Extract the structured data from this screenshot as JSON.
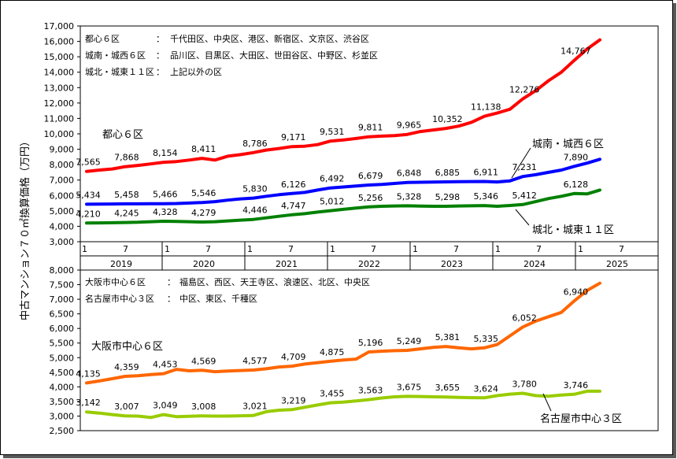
{
  "y_axis_title": "中古マンション７０㎡換算価格（万円）",
  "chart_data": [
    {
      "type": "line",
      "id": "tokyo",
      "ylim": [
        3000,
        17000
      ],
      "yticks": [
        "3,000",
        "4,000",
        "5,000",
        "6,000",
        "7,000",
        "8,000",
        "9,000",
        "10,000",
        "11,000",
        "12,000",
        "13,000",
        "14,000",
        "15,000",
        "16,000",
        "17,000"
      ],
      "notes": [
        {
          "name": "都心６区",
          "sep": "：",
          "areas": "千代田区、中央区、港区、新宿区、文京区、渋谷区"
        },
        {
          "name": "城南・城西６区",
          "sep": "：",
          "areas": "品川区、目黒区、大田区、世田谷区、中野区、杉並区"
        },
        {
          "name": "城北・城東１１区",
          "sep": "：",
          "areas": "上記以外の区"
        }
      ],
      "series": [
        {
          "name": "都心６区",
          "color": "#ff0000",
          "values": [
            7565,
            7650,
            7720,
            7868,
            7950,
            8050,
            8154,
            8200,
            8300,
            8411,
            8300,
            8550,
            8650,
            8786,
            8950,
            9050,
            9171,
            9200,
            9300,
            9531,
            9600,
            9700,
            9811,
            9850,
            9880,
            9965,
            10150,
            10250,
            10352,
            10500,
            10750,
            11138,
            11350,
            11600,
            12276,
            12800,
            13450,
            14000,
            14767,
            15500,
            16100
          ],
          "labels": [
            {
              "i": 0,
              "v": "7,565"
            },
            {
              "i": 3,
              "v": "7,868"
            },
            {
              "i": 6,
              "v": "8,154"
            },
            {
              "i": 9,
              "v": "8,411"
            },
            {
              "i": 13,
              "v": "8,786"
            },
            {
              "i": 16,
              "v": "9,171"
            },
            {
              "i": 19,
              "v": "9,531"
            },
            {
              "i": 22,
              "v": "9,811"
            },
            {
              "i": 25,
              "v": "9,965"
            },
            {
              "i": 28,
              "v": "10,352"
            },
            {
              "i": 31,
              "v": "11,138"
            },
            {
              "i": 34,
              "v": "12,276"
            },
            {
              "i": 38,
              "v": "14,767"
            }
          ]
        },
        {
          "name": "城南・城西６区",
          "color": "#0000ff",
          "values": [
            5434,
            5440,
            5450,
            5458,
            5460,
            5465,
            5466,
            5480,
            5510,
            5546,
            5600,
            5700,
            5780,
            5830,
            5950,
            6050,
            6126,
            6200,
            6350,
            6492,
            6550,
            6620,
            6679,
            6720,
            6780,
            6848,
            6860,
            6870,
            6885,
            6900,
            6905,
            6911,
            6880,
            6950,
            7231,
            7350,
            7500,
            7650,
            7890,
            8100,
            8350
          ],
          "labels": [
            {
              "i": 0,
              "v": "5,434"
            },
            {
              "i": 3,
              "v": "5,458"
            },
            {
              "i": 6,
              "v": "5,466"
            },
            {
              "i": 9,
              "v": "5,546"
            },
            {
              "i": 13,
              "v": "5,830"
            },
            {
              "i": 16,
              "v": "6,126"
            },
            {
              "i": 19,
              "v": "6,492"
            },
            {
              "i": 22,
              "v": "6,679"
            },
            {
              "i": 25,
              "v": "6,848"
            },
            {
              "i": 28,
              "v": "6,885"
            },
            {
              "i": 31,
              "v": "6,911"
            },
            {
              "i": 34,
              "v": "7,231"
            },
            {
              "i": 38,
              "v": "7,890"
            }
          ]
        },
        {
          "name": "城北・城東１１区",
          "color": "#008000",
          "values": [
            4210,
            4220,
            4230,
            4245,
            4260,
            4300,
            4328,
            4320,
            4300,
            4279,
            4300,
            4350,
            4400,
            4446,
            4550,
            4650,
            4747,
            4820,
            4920,
            5012,
            5100,
            5180,
            5256,
            5300,
            5320,
            5328,
            5310,
            5300,
            5298,
            5320,
            5330,
            5346,
            5300,
            5350,
            5412,
            5600,
            5800,
            5950,
            6128,
            6100,
            6350
          ],
          "labels": [
            {
              "i": 0,
              "v": "4,210"
            },
            {
              "i": 3,
              "v": "4,245"
            },
            {
              "i": 6,
              "v": "4,328"
            },
            {
              "i": 9,
              "v": "4,279"
            },
            {
              "i": 13,
              "v": "4,446"
            },
            {
              "i": 16,
              "v": "4,747"
            },
            {
              "i": 19,
              "v": "5,012"
            },
            {
              "i": 22,
              "v": "5,256"
            },
            {
              "i": 25,
              "v": "5,328"
            },
            {
              "i": 28,
              "v": "5,298"
            },
            {
              "i": 31,
              "v": "5,346"
            },
            {
              "i": 34,
              "v": "5,412"
            },
            {
              "i": 38,
              "v": "6,128"
            }
          ]
        }
      ],
      "series_labels": [
        "都心６区",
        "城南・城西６区",
        "城北・城東１１区"
      ],
      "x_months": [
        "1",
        "7",
        "1",
        "7",
        "1",
        "7",
        "1",
        "7",
        "1",
        "7",
        "1",
        "7",
        "1",
        "7"
      ],
      "x_years": [
        "2019",
        "2020",
        "2021",
        "2022",
        "2023",
        "2024",
        "2025"
      ]
    },
    {
      "type": "line",
      "id": "osaka_nagoya",
      "ylim": [
        2500,
        8000
      ],
      "yticks": [
        "2,500",
        "3,000",
        "3,500",
        "4,000",
        "4,500",
        "5,000",
        "5,500",
        "6,000",
        "6,500",
        "7,000",
        "7,500",
        "8,000"
      ],
      "notes": [
        {
          "name": "大阪市中心６区",
          "sep": "：",
          "areas": "福島区、西区、天王寺区、浪速区、北区、中央区"
        },
        {
          "name": "名古屋市中心３区",
          "sep": "：",
          "areas": "中区、東区、千種区"
        }
      ],
      "series": [
        {
          "name": "大阪市中心６区",
          "color": "#ff6600",
          "values": [
            4135,
            4200,
            4280,
            4359,
            4380,
            4420,
            4453,
            4600,
            4550,
            4569,
            4520,
            4540,
            4560,
            4577,
            4620,
            4680,
            4709,
            4780,
            4830,
            4875,
            4920,
            4950,
            5196,
            5220,
            5240,
            5249,
            5300,
            5350,
            5381,
            5340,
            5300,
            5335,
            5450,
            5750,
            6052,
            6250,
            6400,
            6550,
            6940,
            7300,
            7550
          ],
          "labels": [
            {
              "i": 0,
              "v": "4,135"
            },
            {
              "i": 3,
              "v": "4,359"
            },
            {
              "i": 6,
              "v": "4,453"
            },
            {
              "i": 9,
              "v": "4,569"
            },
            {
              "i": 13,
              "v": "4,577"
            },
            {
              "i": 16,
              "v": "4,709"
            },
            {
              "i": 19,
              "v": "4,875"
            },
            {
              "i": 22,
              "v": "5,196"
            },
            {
              "i": 25,
              "v": "5,249"
            },
            {
              "i": 28,
              "v": "5,381"
            },
            {
              "i": 31,
              "v": "5,335"
            },
            {
              "i": 34,
              "v": "6,052"
            },
            {
              "i": 38,
              "v": "6,940"
            }
          ]
        },
        {
          "name": "名古屋市中心３区",
          "color": "#99cc00",
          "values": [
            3142,
            3100,
            3050,
            3007,
            3000,
            2950,
            3049,
            2980,
            2990,
            3008,
            3000,
            3000,
            3010,
            3021,
            3150,
            3200,
            3219,
            3300,
            3380,
            3455,
            3480,
            3520,
            3563,
            3620,
            3660,
            3675,
            3670,
            3660,
            3655,
            3640,
            3630,
            3624,
            3700,
            3750,
            3780,
            3700,
            3680,
            3720,
            3746,
            3850,
            3850
          ],
          "labels": [
            {
              "i": 0,
              "v": "3,142"
            },
            {
              "i": 3,
              "v": "3,007"
            },
            {
              "i": 6,
              "v": "3,049"
            },
            {
              "i": 9,
              "v": "3,008"
            },
            {
              "i": 13,
              "v": "3,021"
            },
            {
              "i": 16,
              "v": "3,219"
            },
            {
              "i": 19,
              "v": "3,455"
            },
            {
              "i": 22,
              "v": "3,563"
            },
            {
              "i": 25,
              "v": "3,675"
            },
            {
              "i": 28,
              "v": "3,655"
            },
            {
              "i": 31,
              "v": "3,624"
            },
            {
              "i": 34,
              "v": "3,780"
            },
            {
              "i": 38,
              "v": "3,746"
            }
          ]
        }
      ],
      "series_labels": [
        "大阪市中心６区",
        "名古屋市中心３区"
      ]
    }
  ]
}
